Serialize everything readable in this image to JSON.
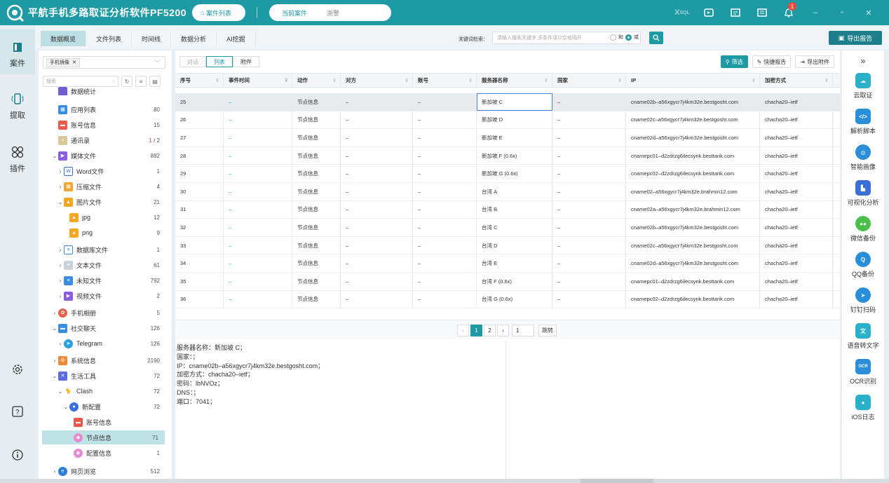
{
  "app": {
    "title": "平航手机多路取证分析软件PF5200",
    "cases_button": "案件列表",
    "current_label": "当前案件",
    "current_value": "浙警",
    "notif_count": "1"
  },
  "leftnav": [
    {
      "label": "案件"
    },
    {
      "label": "提取"
    },
    {
      "label": "插件"
    }
  ],
  "tabs": [
    "数据概览",
    "文件列表",
    "时间线",
    "数据分析",
    "AI挖掘"
  ],
  "keyword": {
    "label": "关键词检索：",
    "placeholder": "请输入搜索关键字,多条件请以空格隔开",
    "and": "和",
    "or": "或"
  },
  "export_report": "导出报告",
  "filter_tag": "手机镜像",
  "search_placeholder": "搜索",
  "tree": [
    {
      "label": "数据统计",
      "count": ""
    },
    {
      "label": "应用列表",
      "count": "80"
    },
    {
      "label": "账号信息",
      "count": "15"
    },
    {
      "label": "通讯录",
      "count_red": "1",
      "count": " / 2"
    },
    {
      "label": "媒体文件",
      "count": "882"
    },
    {
      "label": "Word文件",
      "count": "1"
    },
    {
      "label": "压缩文件",
      "count": "4"
    },
    {
      "label": "图片文件",
      "count": "21"
    },
    {
      "label": "jpg",
      "count": "12"
    },
    {
      "label": "png",
      "count": "9"
    },
    {
      "label": "数据库文件",
      "count": "1"
    },
    {
      "label": "文本文件",
      "count": "61"
    },
    {
      "label": "未知文件",
      "count": "792"
    },
    {
      "label": "视频文件",
      "count": "2"
    },
    {
      "label": "手机相册",
      "count": "5"
    },
    {
      "label": "社交聊天",
      "count": "126"
    },
    {
      "label": "Telegram",
      "count": "126"
    },
    {
      "label": "系统信息",
      "count": "2190"
    },
    {
      "label": "生活工具",
      "count": "72"
    },
    {
      "label": "Clash",
      "count": "72"
    },
    {
      "label": "新配置",
      "count": "72"
    },
    {
      "label": "账号信息",
      "count": ""
    },
    {
      "label": "节点信息",
      "count": "71"
    },
    {
      "label": "配置信息",
      "count": "1"
    },
    {
      "label": "网页浏览",
      "count": "512"
    }
  ],
  "view_tabs": [
    "对话",
    "列表",
    "附件"
  ],
  "actions": {
    "filter": "筛选",
    "quick_report": "快捷报告",
    "export_attach": "导出附件"
  },
  "columns": [
    "序号",
    "事件时间",
    "动作",
    "对方",
    "账号",
    "服务器名称",
    "国家",
    "IP",
    "加密方式"
  ],
  "rows": [
    {
      "no": "25",
      "time": "–",
      "action": "节点信息",
      "peer": "–",
      "acct": "–",
      "server": "新加坡 C",
      "country": "–",
      "ip": "cname02b–a56xgycr7j4km32e.bestgosht.com",
      "enc": "chacha20–ietf"
    },
    {
      "no": "26",
      "time": "–",
      "action": "节点信息",
      "peer": "–",
      "acct": "–",
      "server": "新加坡 D",
      "country": "–",
      "ip": "cname02c–a56xgycr7j4km32e.bestgosht.com",
      "enc": "chacha20–ietf"
    },
    {
      "no": "27",
      "time": "–",
      "action": "节点信息",
      "peer": "–",
      "acct": "–",
      "server": "新加坡 E",
      "country": "–",
      "ip": "cname02d–a56xgycr7j4km32e.bestgosht.com",
      "enc": "chacha20–ietf"
    },
    {
      "no": "28",
      "time": "–",
      "action": "节点信息",
      "peer": "–",
      "acct": "–",
      "server": "新加坡 F (0.6x)",
      "country": "–",
      "ip": "cnamepc01–d2zdrzg6ilecsynk.besttarik.com",
      "enc": "chacha20–ietf"
    },
    {
      "no": "29",
      "time": "–",
      "action": "节点信息",
      "peer": "–",
      "acct": "–",
      "server": "新加坡 G (0.6x)",
      "country": "–",
      "ip": "cnamepc02–d2zdrzg6ilecsynk.besttarik.com",
      "enc": "chacha20–ietf"
    },
    {
      "no": "30",
      "time": "–",
      "action": "节点信息",
      "peer": "–",
      "acct": "–",
      "server": "台湾 A",
      "country": "–",
      "ip": "cname02–a56xgycr7j4km32e.brahmin12.com",
      "enc": "chacha20–ietf"
    },
    {
      "no": "31",
      "time": "–",
      "action": "节点信息",
      "peer": "–",
      "acct": "–",
      "server": "台湾 B",
      "country": "–",
      "ip": "cname02a–a56xgycr7j4km32e.brahmin12.com",
      "enc": "chacha20–ietf"
    },
    {
      "no": "32",
      "time": "–",
      "action": "节点信息",
      "peer": "–",
      "acct": "–",
      "server": "台湾 C",
      "country": "–",
      "ip": "cname02b–a56xgycr7j4km32e.bestgosht.com",
      "enc": "chacha20–ietf"
    },
    {
      "no": "33",
      "time": "–",
      "action": "节点信息",
      "peer": "–",
      "acct": "–",
      "server": "台湾 D",
      "country": "–",
      "ip": "cname02c–a56xgycr7j4km32e.bestgosht.com",
      "enc": "chacha20–ietf"
    },
    {
      "no": "34",
      "time": "–",
      "action": "节点信息",
      "peer": "–",
      "acct": "–",
      "server": "台湾 E",
      "country": "–",
      "ip": "cname02d–a56xgycr7j4km32e.bestgosht.com",
      "enc": "chacha20–ietf"
    },
    {
      "no": "35",
      "time": "–",
      "action": "节点信息",
      "peer": "–",
      "acct": "–",
      "server": "台湾 F (0.6x)",
      "country": "–",
      "ip": "cnamepc01–d2zdrzg6ilecsynk.besttarik.com",
      "enc": "chacha20–ietf"
    },
    {
      "no": "36",
      "time": "–",
      "action": "节点信息",
      "peer": "–",
      "acct": "–",
      "server": "台湾 G (0.6x)",
      "country": "–",
      "ip": "cnamepc02–d2zdrzg6ilecsynk.besttarik.com",
      "enc": "chacha20–ietf"
    }
  ],
  "pager": {
    "p1": "1",
    "p2": "2",
    "goto_value": "1",
    "goto_label": "跳转"
  },
  "detail": [
    "服务器名称：新加坡 C；",
    "国家：；",
    "IP：cname02b–a56xgycr7j4km32e.bestgosht.com；",
    "加密方式：chacha20–ietf；",
    "密码：lbNVOz；",
    "DNS：；",
    "端口：7041；"
  ],
  "sidetools": [
    "云取证",
    "解析脚本",
    "智能画像",
    "可视化分析",
    "微信备份",
    "QQ备份",
    "钉钉扫码",
    "语音转文字",
    "OCR识别",
    "iOS日志"
  ]
}
